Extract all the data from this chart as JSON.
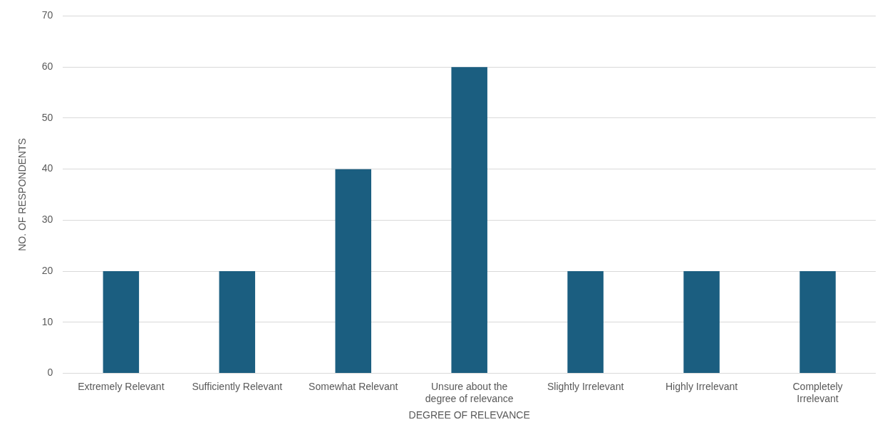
{
  "chart_data": {
    "type": "bar",
    "xlabel": "DEGREE OF RELEVANCE",
    "ylabel": "NO. OF RESPONDENTS",
    "categories": [
      "Extremely Relevant",
      "Sufficiently Relevant",
      "Somewhat Relevant",
      "Unsure about the degree of relevance",
      "Slightly Irrelevant",
      "Highly Irrelevant",
      "Completely Irrelevant"
    ],
    "values": [
      20,
      20,
      40,
      60,
      20,
      20,
      20
    ],
    "color": "#1b5e80",
    "ylim": [
      0,
      70
    ],
    "yticks": [
      0,
      10,
      20,
      30,
      40,
      50,
      60,
      70
    ],
    "grid": "y",
    "legend": false
  }
}
